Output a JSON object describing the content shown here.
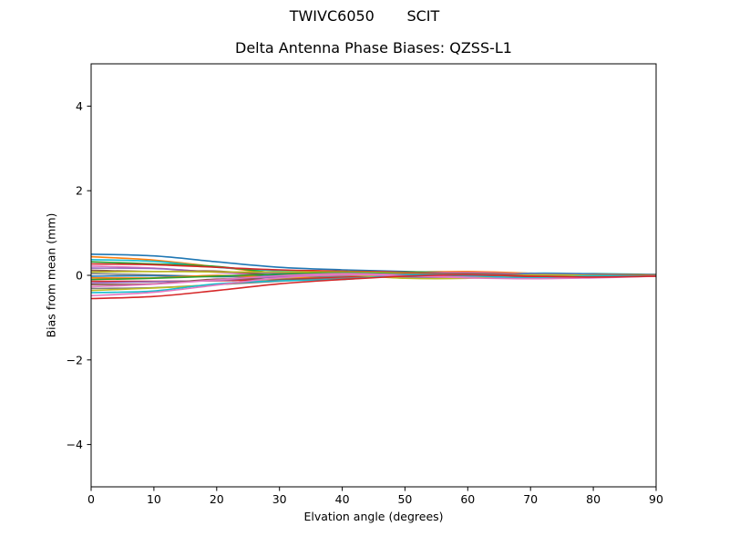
{
  "chart_data": {
    "type": "line",
    "suptitle": "TWIVC6050       SCIT",
    "title": "Delta Antenna Phase Biases: QZSS-L1",
    "xlabel": "Elvation angle (degrees)",
    "ylabel": "Bias from mean (mm)",
    "xlim": [
      0,
      90
    ],
    "ylim": [
      -5,
      5
    ],
    "xticks": [
      0,
      10,
      20,
      30,
      40,
      50,
      60,
      70,
      80,
      90
    ],
    "xtick_labels": [
      "0",
      "10",
      "20",
      "30",
      "40",
      "50",
      "60",
      "70",
      "80",
      "90"
    ],
    "yticks": [
      -4,
      -2,
      0,
      2,
      4
    ],
    "ytick_labels": [
      "−4",
      "−2",
      "0",
      "2",
      "4"
    ],
    "grid": false,
    "legend": "none",
    "frame_color": "#000000",
    "background_color": "#ffffff",
    "x": [
      0,
      10,
      20,
      30,
      40,
      50,
      60,
      70,
      80,
      90
    ],
    "series": [
      {
        "name": "line-01",
        "color": "#1f77b4",
        "values": [
          0.5,
          0.46,
          0.32,
          0.19,
          0.13,
          0.09,
          0.02,
          -0.02,
          0.0,
          0.02
        ]
      },
      {
        "name": "line-02",
        "color": "#ff7f0e",
        "values": [
          0.44,
          0.36,
          0.2,
          0.05,
          0.02,
          0.07,
          0.09,
          0.05,
          0.01,
          0.02
        ]
      },
      {
        "name": "line-03",
        "color": "#17becf",
        "values": [
          0.37,
          0.33,
          0.19,
          0.11,
          0.09,
          0.01,
          -0.01,
          0.05,
          0.04,
          0.02
        ]
      },
      {
        "name": "line-04",
        "color": "#2ca02c",
        "values": [
          0.32,
          0.27,
          0.21,
          0.05,
          -0.01,
          0.08,
          0.05,
          -0.01,
          0.03,
          0.01
        ]
      },
      {
        "name": "line-05",
        "color": "#d62728",
        "values": [
          0.27,
          0.25,
          0.19,
          0.13,
          0.1,
          0.07,
          0.0,
          -0.03,
          -0.02,
          0.01
        ]
      },
      {
        "name": "line-06",
        "color": "#e377c2",
        "values": [
          0.22,
          0.17,
          0.07,
          0.0,
          0.0,
          0.05,
          0.07,
          0.03,
          0.0,
          0.01
        ]
      },
      {
        "name": "line-07",
        "color": "#9467bd",
        "values": [
          0.17,
          0.16,
          0.08,
          0.06,
          0.07,
          -0.01,
          -0.03,
          0.04,
          0.03,
          0.01
        ]
      },
      {
        "name": "line-08",
        "color": "#8c564b",
        "values": [
          0.12,
          0.09,
          0.1,
          0.0,
          -0.04,
          0.06,
          0.03,
          -0.02,
          0.02,
          0.01
        ]
      },
      {
        "name": "line-09",
        "color": "#bcbd22",
        "values": [
          0.08,
          0.09,
          0.08,
          0.08,
          0.08,
          0.05,
          -0.01,
          -0.04,
          -0.03,
          0.0
        ]
      },
      {
        "name": "line-10",
        "color": "#7f7f7f",
        "values": [
          0.04,
          0.01,
          -0.03,
          -0.05,
          -0.03,
          0.03,
          0.05,
          0.02,
          -0.01,
          0.0
        ]
      },
      {
        "name": "line-11",
        "color": "#1f77b4",
        "values": [
          -0.02,
          -0.01,
          -0.03,
          0.01,
          0.05,
          -0.03,
          -0.04,
          0.03,
          0.02,
          0.0
        ]
      },
      {
        "name": "line-12",
        "color": "#ff7f0e",
        "values": [
          -0.06,
          -0.06,
          0.0,
          -0.05,
          -0.06,
          0.04,
          0.02,
          -0.03,
          0.01,
          0.0
        ]
      },
      {
        "name": "line-13",
        "color": "#2ca02c",
        "values": [
          -0.1,
          -0.07,
          -0.02,
          0.03,
          0.06,
          0.03,
          -0.03,
          -0.06,
          -0.04,
          0.0
        ]
      },
      {
        "name": "line-14",
        "color": "#d62728",
        "values": [
          -0.14,
          -0.14,
          -0.13,
          -0.1,
          -0.05,
          0.02,
          0.04,
          0.01,
          -0.02,
          -0.01
        ]
      },
      {
        "name": "line-15",
        "color": "#9467bd",
        "values": [
          -0.18,
          -0.15,
          -0.12,
          -0.03,
          0.03,
          -0.05,
          -0.05,
          0.02,
          0.01,
          -0.01
        ]
      },
      {
        "name": "line-16",
        "color": "#8c564b",
        "values": [
          -0.22,
          -0.2,
          -0.09,
          -0.09,
          -0.08,
          0.03,
          0.0,
          -0.04,
          0.0,
          -0.01
        ]
      },
      {
        "name": "line-17",
        "color": "#e377c2",
        "values": [
          -0.27,
          -0.21,
          -0.11,
          -0.01,
          0.04,
          0.01,
          -0.04,
          -0.07,
          -0.04,
          -0.01
        ]
      },
      {
        "name": "line-18",
        "color": "#7f7f7f",
        "values": [
          -0.31,
          -0.29,
          -0.22,
          -0.14,
          -0.07,
          0.0,
          0.03,
          0.0,
          -0.03,
          -0.01
        ]
      },
      {
        "name": "line-19",
        "color": "#bcbd22",
        "values": [
          -0.36,
          -0.3,
          -0.22,
          -0.07,
          0.01,
          -0.07,
          -0.07,
          0.01,
          0.0,
          -0.02
        ]
      },
      {
        "name": "line-20",
        "color": "#17becf",
        "values": [
          -0.41,
          -0.37,
          -0.2,
          -0.13,
          -0.1,
          0.01,
          -0.01,
          -0.06,
          -0.01,
          -0.02
        ]
      },
      {
        "name": "line-21",
        "color": "#e377c2",
        "values": [
          -0.48,
          -0.4,
          -0.23,
          -0.06,
          0.01,
          -0.01,
          -0.06,
          -0.08,
          -0.06,
          -0.02
        ]
      },
      {
        "name": "line-22",
        "color": "#d62728",
        "values": [
          -0.55,
          -0.5,
          -0.36,
          -0.2,
          -0.1,
          -0.02,
          0.01,
          -0.02,
          -0.04,
          -0.02
        ]
      }
    ]
  }
}
